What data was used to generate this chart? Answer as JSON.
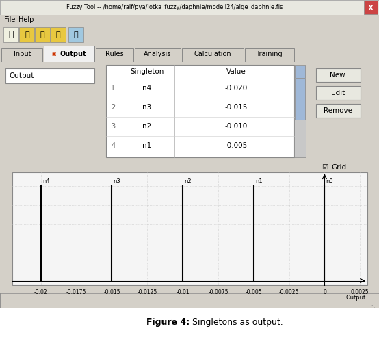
{
  "window_title": "Fuzzy Tool -- /home/ralf/pya/lotka_fuzzy/daphnie/modell24/alge_daphnie.fis",
  "figure_caption_bold": "Figure 4:",
  "figure_caption_normal": " Singletons as output.",
  "tabs": [
    "Input",
    "Output",
    "Rules",
    "Analysis",
    "Calculation",
    "Training"
  ],
  "active_tab": "Output",
  "output_label": "Output",
  "table_headers": [
    "Singleton",
    "Value"
  ],
  "table_rows": [
    [
      "1",
      "n4",
      "-0.020"
    ],
    [
      "2",
      "n3",
      "-0.015"
    ],
    [
      "3",
      "n2",
      "-0.010"
    ],
    [
      "4",
      "n1",
      "-0.005"
    ]
  ],
  "buttons": [
    "New",
    "Edit",
    "Remove"
  ],
  "singleton_names": [
    "n4",
    "n3",
    "n2",
    "n1",
    "n0"
  ],
  "singleton_values": [
    -0.02,
    -0.015,
    -0.01,
    -0.005,
    0.0
  ],
  "xticks": [
    -0.02,
    -0.0175,
    -0.015,
    -0.0125,
    -0.01,
    -0.0075,
    -0.005,
    -0.0025,
    0.0,
    0.0025
  ],
  "xtick_labels": [
    "-0.02",
    "-0.0175",
    "-0.015",
    "-0.0125",
    "-0.01",
    "-0.0075",
    "-0.005",
    "-0.0025",
    "0",
    "0.0025"
  ],
  "xlabel": "Output",
  "bg_color": "#d4d0c8",
  "plot_bg_color": "#f5f5f5",
  "grid_color": "#c8c8c8",
  "white": "#ffffff",
  "title_bar_bg": "#e8e8e0",
  "tab_active_bg": "#f0f0f0",
  "scrollbar_thumb": "#9fb8d8",
  "scrollbar_bg": "#c8c8c8"
}
